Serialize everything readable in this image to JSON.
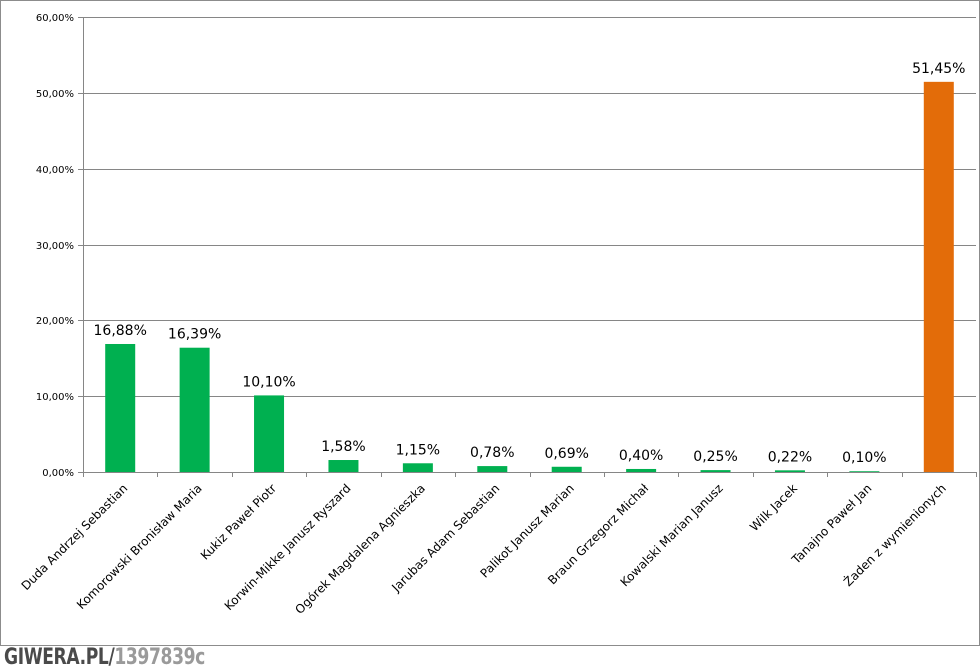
{
  "chart_data": {
    "type": "bar",
    "title": "",
    "xlabel": "",
    "ylabel": "",
    "ylim": [
      0,
      60
    ],
    "y_ticks": [
      "0,00%",
      "10,00%",
      "20,00%",
      "30,00%",
      "40,00%",
      "50,00%",
      "60,00%"
    ],
    "grid": true,
    "legend": "none",
    "categories": [
      "Duda Andrzej Sebastian",
      "Komorowski Bronisław Maria",
      "Kukiz Paweł Piotr",
      "Korwin-Mikke Janusz Ryszard",
      "Ogórek Magdalena Agnieszka",
      "Jarubas Adam Sebastian",
      "Palikot Janusz Marian",
      "Braun Grzegorz Michał",
      "Kowalski Marian Janusz",
      "Wilk Jacek",
      "Tanajno Paweł Jan",
      "Żaden z wymienionych"
    ],
    "values": [
      16.88,
      16.39,
      10.1,
      1.58,
      1.15,
      0.78,
      0.69,
      0.4,
      0.25,
      0.22,
      0.1,
      51.45
    ],
    "data_labels": [
      "16,88%",
      "16,39%",
      "10,10%",
      "1,58%",
      "1,15%",
      "0,78%",
      "0,69%",
      "0,40%",
      "0,25%",
      "0,22%",
      "0,10%",
      "51,45%"
    ],
    "colors": [
      "#00b050",
      "#00b050",
      "#00b050",
      "#00b050",
      "#00b050",
      "#00b050",
      "#00b050",
      "#00b050",
      "#00b050",
      "#00b050",
      "#00b050",
      "#e36c09"
    ],
    "gridline_color": "#868686",
    "axis_color": "#868686"
  },
  "watermark": {
    "site": "GIWERA.PL/",
    "id": "1397839c"
  }
}
